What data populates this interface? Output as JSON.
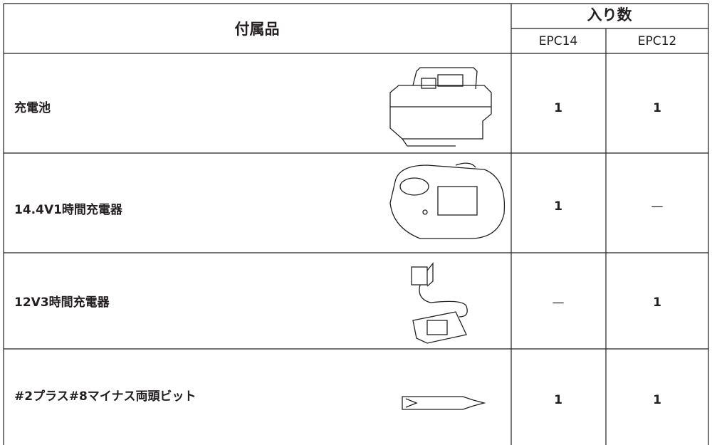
{
  "table": {
    "header": {
      "item": "付属品",
      "count": "入り数",
      "models": [
        "EPC14",
        "EPC12"
      ]
    },
    "rows": [
      {
        "name": "充電池",
        "counts": [
          1,
          1
        ]
      },
      {
        "name": "14.4V1時間充電器",
        "counts": [
          1,
          "—"
        ]
      },
      {
        "name": "12V3時間充電器",
        "counts": [
          "—",
          1
        ]
      },
      {
        "name": "#2プラス#8マイナス両頭ビット",
        "counts": [
          1,
          1
        ]
      }
    ]
  }
}
